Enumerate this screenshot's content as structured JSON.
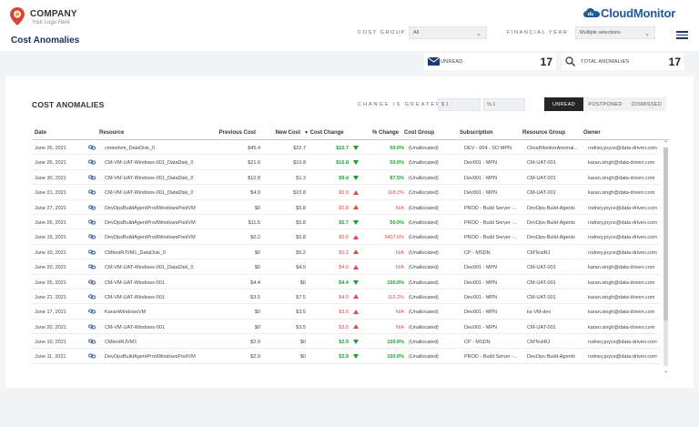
{
  "header": {
    "company_name": "COMPANY",
    "company_tagline": "Your Logo Here",
    "page_title": "Cost Anomalies",
    "brand": "CloudMonitor",
    "cost_group_label": "COST GROUP",
    "cost_group_value": "All",
    "financial_year_label": "FINANCIAL YEAR",
    "financial_year_value": "Multiple selections",
    "icons": {
      "logo": "map-pin-logo-icon",
      "brand": "cloud-icon",
      "menu": "hamburger-menu-icon"
    }
  },
  "kpis": {
    "unread_label": "UNREAD",
    "unread_value": "17",
    "unread_icon": "envelope-icon",
    "total_label": "TOTAL ANOMALIES",
    "total_value": "17",
    "total_icon": "magnifier-icon"
  },
  "panel": {
    "title": "COST ANOMALIES",
    "change_label": "CHANGE IS GREATER",
    "dollar_input": "$ 1",
    "percent_input": "% 1",
    "tabs": [
      "UNREAD",
      "POSTPONED",
      "DISMISSED"
    ],
    "active_tab": "UNREAD"
  },
  "table": {
    "columns": [
      "Date",
      "Resource",
      "Previous Cost",
      "New Cost",
      "Cost Change",
      "% Change",
      "Cost Group",
      "Subscription",
      "Resource Group",
      "Owner"
    ],
    "rows": [
      {
        "date": "June 26, 2021",
        "resource": "cmtestvm_DataDisk_0",
        "prev": "$45.4",
        "new": "$22.7",
        "change": "$22.7",
        "dir": "down",
        "pct": "50.0%",
        "group": "(Unallocated)",
        "sub": "DEV - 004 - SO MPN",
        "rg": "CloudMonitorAnomal...",
        "owner": "rodney.joyce@data-driven.com"
      },
      {
        "date": "June 26, 2021",
        "resource": "CM-VM-UAT-Windows-001_DataDisk_0",
        "prev": "$21.6",
        "new": "$10.8",
        "change": "$10.8",
        "dir": "down",
        "pct": "50.0%",
        "group": "(Unallocated)",
        "sub": "Dev001 - MPN",
        "rg": "CM-UAT-001",
        "owner": "karan.singh@data-driven.com"
      },
      {
        "date": "June 30, 2021",
        "resource": "CM-VM-UAT-Windows-001_DataDisk_0",
        "prev": "$10.8",
        "new": "$1.3",
        "change": "$9.4",
        "dir": "down",
        "pct": "87.5%",
        "group": "(Unallocated)",
        "sub": "Dev001 - MPN",
        "rg": "CM-UAT-001",
        "owner": "karan.singh@data-driven.com"
      },
      {
        "date": "June 21, 2021",
        "resource": "CM-VM-UAT-Windows-001_DataDisk_0",
        "prev": "$4.9",
        "new": "$10.8",
        "change": "$5.9",
        "dir": "up",
        "pct": "118.2%",
        "group": "(Unallocated)",
        "sub": "Dev001 - MPN",
        "rg": "CM-UAT-001",
        "owner": "karan.singh@data-driven.com"
      },
      {
        "date": "June 27, 2021",
        "resource": "DevOpsBuildAgentProdWindowsPoolVM",
        "prev": "$0",
        "new": "$5.8",
        "change": "$5.8",
        "dir": "up",
        "pct": "N/A",
        "group": "(Unallocated)",
        "sub": "PROD - Build Server -...",
        "rg": "DevOps-Build-Agents",
        "owner": "rodney.joyce@data-driven.com"
      },
      {
        "date": "June 26, 2021",
        "resource": "DevOpsBuildAgentProdWindowsPoolVM",
        "prev": "$11.5",
        "new": "$5.8",
        "change": "$5.7",
        "dir": "down",
        "pct": "50.0%",
        "group": "(Unallocated)",
        "sub": "PROD - Build Server -...",
        "rg": "DevOps-Build-Agents",
        "owner": "rodney.joyce@data-driven.com"
      },
      {
        "date": "June 15, 2021",
        "resource": "DevOpsBuildAgentProdWindowsPoolVM",
        "prev": "$0.2",
        "new": "$5.8",
        "change": "$5.6",
        "dir": "up",
        "pct": "3407.6%",
        "group": "(Unallocated)",
        "sub": "PROD - Build Server -...",
        "rg": "DevOps-Build-Agents",
        "owner": "rodney.joyce@data-driven.com"
      },
      {
        "date": "June 10, 2021",
        "resource": "CMtestRJVM1_DataDisk_0",
        "prev": "$0",
        "new": "$5.2",
        "change": "$5.2",
        "dir": "up",
        "pct": "N/A",
        "group": "(Unallocated)",
        "sub": "CP - MSDN",
        "rg": "CMTestRJ",
        "owner": "rodney.joyce@data-driven.com"
      },
      {
        "date": "June 20, 2021",
        "resource": "CM-VM-UAT-Windows-001_DataDisk_0",
        "prev": "$0",
        "new": "$4.9",
        "change": "$4.9",
        "dir": "up",
        "pct": "N/A",
        "group": "(Unallocated)",
        "sub": "Dev001 - MPN",
        "rg": "CM-UAT-001",
        "owner": "karan.singh@data-driven.com"
      },
      {
        "date": "June 25, 2021",
        "resource": "CM-VM-UAT-Windows-001",
        "prev": "$4.4",
        "new": "$0",
        "change": "$4.4",
        "dir": "down",
        "pct": "100.0%",
        "group": "(Unallocated)",
        "sub": "Dev001 - MPN",
        "rg": "CM-UAT-001",
        "owner": "karan.singh@data-driven.com"
      },
      {
        "date": "June 21, 2021",
        "resource": "CM-VM-UAT-Windows-001",
        "prev": "$3.5",
        "new": "$7.5",
        "change": "$4.0",
        "dir": "up",
        "pct": "115.2%",
        "group": "(Unallocated)",
        "sub": "Dev001 - MPN",
        "rg": "CM-UAT-001",
        "owner": "karan.singh@data-driven.com"
      },
      {
        "date": "June 17, 2021",
        "resource": "KaranWindowsVM",
        "prev": "$0",
        "new": "$3.5",
        "change": "$3.5",
        "dir": "up",
        "pct": "N/A",
        "group": "(Unallocated)",
        "sub": "Dev001 - MPN",
        "rg": "ks-VM-dev",
        "owner": "karan.singh@data-driven.com"
      },
      {
        "date": "June 20, 2021",
        "resource": "CM-VM-UAT-Windows-001",
        "prev": "$0",
        "new": "$3.5",
        "change": "$3.5",
        "dir": "up",
        "pct": "N/A",
        "group": "(Unallocated)",
        "sub": "Dev001 - MPN",
        "rg": "CM-UAT-001",
        "owner": "karan.singh@data-driven.com"
      },
      {
        "date": "June 10, 2021",
        "resource": "CMtestRJVM1",
        "prev": "$2.9",
        "new": "$0",
        "change": "$2.9",
        "dir": "down",
        "pct": "100.0%",
        "group": "(Unallocated)",
        "sub": "CP - MSDN",
        "rg": "CMTestRJ",
        "owner": "rodney.joyce@data-driven.com"
      },
      {
        "date": "June 11, 2021",
        "resource": "DevOpsBuildAgentProdWindowsPoolVM",
        "prev": "$2.9",
        "new": "$0",
        "change": "$2.9",
        "dir": "down",
        "pct": "100.0%",
        "group": "(Unallocated)",
        "sub": "PROD - Build Server -...",
        "rg": "DevOps-Build-Agents",
        "owner": "rodney.joyce@data-driven.com"
      }
    ]
  },
  "colors": {
    "accent": "#16325c",
    "brand": "#1e5aa0",
    "decrease": "#1a9e2e",
    "increase": "#e0474c",
    "tab_active": "#252525"
  }
}
